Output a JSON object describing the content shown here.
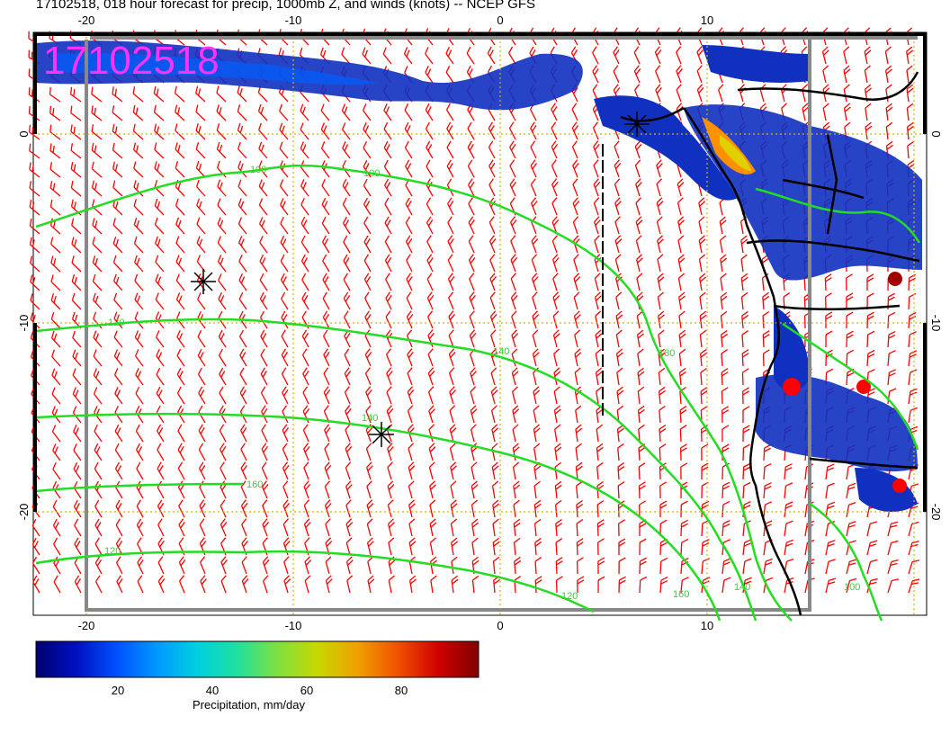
{
  "title": "17102518, 018 hour forecast for precip, 1000mb Z, and winds (knots) -- NCEP GFS",
  "stamp": "17102518",
  "top_ticks": [
    "-20",
    "-10",
    "0",
    "10"
  ],
  "bottom_ticks": [
    "-20",
    "-10",
    "0",
    "10"
  ],
  "left_ticks": [
    "0",
    "-10",
    "-20"
  ],
  "right_ticks": [
    "0",
    "-10",
    "-20"
  ],
  "contour_labels": [
    "100",
    "100",
    "120",
    "140",
    "140",
    "160",
    "180",
    "120",
    "160",
    "140",
    "120",
    "100"
  ],
  "colorbar": {
    "title": "Precipitation, mm/day",
    "ticks": [
      "20",
      "40",
      "60",
      "80"
    ],
    "colors": [
      "#000070",
      "#0010c0",
      "#0050ff",
      "#0098ff",
      "#00d0e0",
      "#20e0a0",
      "#80e040",
      "#c8d800",
      "#f0a000",
      "#f05000",
      "#d00000",
      "#800000"
    ]
  },
  "colors": {
    "wind_barb": "#ff0000",
    "contour": "#22dd22",
    "grid": "#d4b400",
    "coast": "#000000",
    "stamp": "#ff33ff"
  }
}
